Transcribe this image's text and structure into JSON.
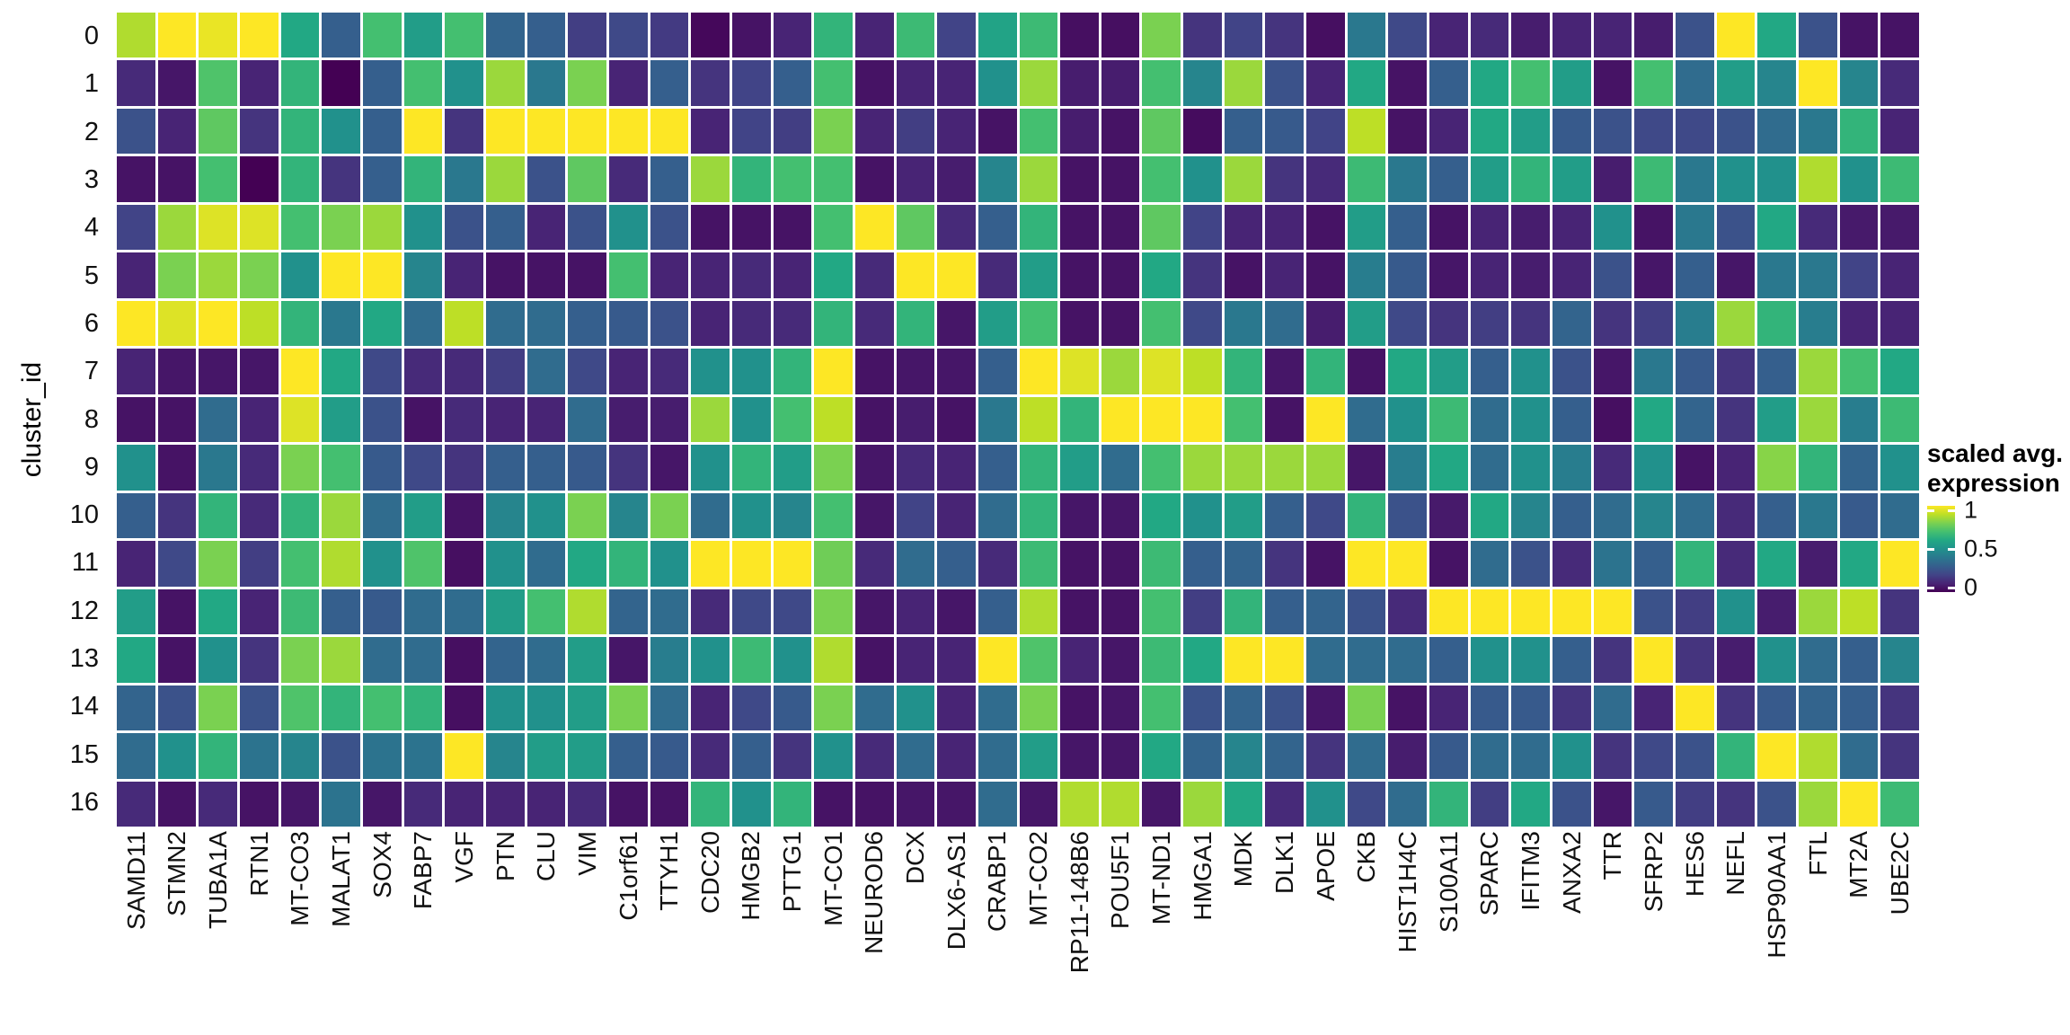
{
  "figure": {
    "y_axis_title": "cluster_id",
    "legend": {
      "title_line1": "scaled avg.",
      "title_line2": "expression",
      "ticks": [
        "1",
        "0.5",
        "0"
      ]
    }
  },
  "chart_data": {
    "type": "heatmap",
    "title": "",
    "xlabel": "",
    "ylabel": "cluster_id",
    "legend_title": "scaled avg. expression",
    "colormap": "viridis",
    "value_range": [
      0,
      1
    ],
    "legend_tick_values": [
      1,
      0.5,
      0
    ],
    "grid": "white gaps between tiles",
    "legend_position": "right",
    "colormap_stops": [
      [
        0.0,
        "#440154"
      ],
      [
        0.1,
        "#482475"
      ],
      [
        0.2,
        "#414487"
      ],
      [
        0.3,
        "#355f8d"
      ],
      [
        0.4,
        "#2a788e"
      ],
      [
        0.5,
        "#21918c"
      ],
      [
        0.6,
        "#22a884"
      ],
      [
        0.7,
        "#44bf70"
      ],
      [
        0.8,
        "#7ad151"
      ],
      [
        0.9,
        "#bddf26"
      ],
      [
        1.0,
        "#fde725"
      ]
    ],
    "rows": [
      "0",
      "1",
      "2",
      "3",
      "4",
      "5",
      "6",
      "7",
      "8",
      "9",
      "10",
      "11",
      "12",
      "13",
      "14",
      "15",
      "16"
    ],
    "columns": [
      "SAMD11",
      "STMN2",
      "TUBA1A",
      "RTN1",
      "MT-CO3",
      "MALAT1",
      "SOX4",
      "FABP7",
      "VGF",
      "PTN",
      "CLU",
      "VIM",
      "C1orf61",
      "TTYH1",
      "CDC20",
      "HMGB2",
      "PTTG1",
      "MT-CO1",
      "NEUROD6",
      "DCX",
      "DLX6-AS1",
      "CRABP1",
      "MT-CO2",
      "RP11-148B6",
      "POU5F1",
      "MT-ND1",
      "HMGA1",
      "MDK",
      "DLK1",
      "APOE",
      "CKB",
      "HIST1H4C",
      "S100A11",
      "SPARC",
      "IFITM3",
      "ANXA2",
      "TTR",
      "SFRP2",
      "HES6",
      "NEFL",
      "HSP90AA1",
      "FTL",
      "MT2A",
      "UBE2C"
    ],
    "values": [
      [
        0.88,
        1,
        0.97,
        1,
        0.6,
        0.3,
        0.7,
        0.55,
        0.7,
        0.32,
        0.3,
        0.18,
        0.22,
        0.17,
        0.02,
        0.05,
        0.1,
        0.65,
        0.1,
        0.68,
        0.2,
        0.58,
        0.68,
        0.04,
        0.04,
        0.8,
        0.15,
        0.2,
        0.15,
        0.04,
        0.4,
        0.22,
        0.1,
        0.12,
        0.08,
        0.1,
        0.1,
        0.08,
        0.25,
        1,
        0.6,
        0.25,
        0.05,
        0.05
      ],
      [
        0.12,
        0.06,
        0.72,
        0.1,
        0.65,
        0,
        0.3,
        0.7,
        0.5,
        0.85,
        0.4,
        0.8,
        0.1,
        0.3,
        0.15,
        0.2,
        0.3,
        0.7,
        0.05,
        0.1,
        0.1,
        0.5,
        0.85,
        0.08,
        0.08,
        0.7,
        0.45,
        0.85,
        0.25,
        0.1,
        0.6,
        0.05,
        0.3,
        0.6,
        0.7,
        0.55,
        0.05,
        0.7,
        0.35,
        0.55,
        0.45,
        1,
        0.45,
        0.12
      ],
      [
        0.25,
        0.1,
        0.75,
        0.15,
        0.65,
        0.5,
        0.3,
        1,
        0.15,
        1,
        1,
        1,
        1,
        1,
        0.1,
        0.2,
        0.18,
        0.8,
        0.1,
        0.18,
        0.1,
        0.05,
        0.7,
        0.08,
        0.05,
        0.75,
        0.03,
        0.3,
        0.28,
        0.2,
        0.9,
        0.05,
        0.1,
        0.6,
        0.55,
        0.28,
        0.25,
        0.22,
        0.22,
        0.25,
        0.35,
        0.4,
        0.65,
        0.1
      ],
      [
        0.05,
        0.05,
        0.7,
        0,
        0.65,
        0.15,
        0.3,
        0.65,
        0.4,
        0.85,
        0.25,
        0.75,
        0.12,
        0.3,
        0.85,
        0.65,
        0.7,
        0.7,
        0.05,
        0.1,
        0.08,
        0.45,
        0.85,
        0.05,
        0.05,
        0.7,
        0.5,
        0.85,
        0.15,
        0.12,
        0.68,
        0.4,
        0.3,
        0.55,
        0.65,
        0.55,
        0.08,
        0.68,
        0.4,
        0.5,
        0.5,
        0.88,
        0.5,
        0.68
      ],
      [
        0.2,
        0.85,
        0.95,
        0.95,
        0.7,
        0.8,
        0.85,
        0.5,
        0.25,
        0.3,
        0.1,
        0.25,
        0.5,
        0.25,
        0.05,
        0.05,
        0.05,
        0.7,
        1,
        0.75,
        0.12,
        0.3,
        0.65,
        0.05,
        0.05,
        0.75,
        0.2,
        0.1,
        0.1,
        0.05,
        0.55,
        0.3,
        0.05,
        0.1,
        0.08,
        0.1,
        0.5,
        0.05,
        0.4,
        0.25,
        0.6,
        0.12,
        0.07,
        0.07
      ],
      [
        0.1,
        0.8,
        0.85,
        0.8,
        0.5,
        1,
        1,
        0.45,
        0.1,
        0.05,
        0.05,
        0.05,
        0.7,
        0.1,
        0.1,
        0.12,
        0.1,
        0.6,
        0.12,
        1,
        1,
        0.12,
        0.55,
        0.05,
        0.05,
        0.6,
        0.15,
        0.05,
        0.1,
        0.05,
        0.42,
        0.28,
        0.06,
        0.1,
        0.08,
        0.1,
        0.25,
        0.06,
        0.3,
        0.06,
        0.4,
        0.4,
        0.2,
        0.1
      ],
      [
        1,
        0.95,
        1,
        0.9,
        0.65,
        0.4,
        0.6,
        0.35,
        0.9,
        0.35,
        0.35,
        0.3,
        0.28,
        0.25,
        0.1,
        0.12,
        0.12,
        0.65,
        0.12,
        0.65,
        0.06,
        0.55,
        0.7,
        0.05,
        0.05,
        0.7,
        0.22,
        0.4,
        0.35,
        0.08,
        0.55,
        0.22,
        0.15,
        0.18,
        0.15,
        0.32,
        0.15,
        0.18,
        0.42,
        0.85,
        0.65,
        0.42,
        0.1,
        0.1
      ],
      [
        0.1,
        0.06,
        0.06,
        0.06,
        1,
        0.6,
        0.22,
        0.12,
        0.12,
        0.18,
        0.35,
        0.22,
        0.1,
        0.12,
        0.5,
        0.5,
        0.65,
        1,
        0.05,
        0.06,
        0.06,
        0.3,
        1,
        0.95,
        0.85,
        0.95,
        0.9,
        0.65,
        0.06,
        0.65,
        0.05,
        0.6,
        0.55,
        0.3,
        0.5,
        0.25,
        0.06,
        0.4,
        0.28,
        0.15,
        0.3,
        0.85,
        0.7,
        0.6
      ],
      [
        0.05,
        0.05,
        0.35,
        0.1,
        0.95,
        0.55,
        0.25,
        0.05,
        0.12,
        0.1,
        0.1,
        0.35,
        0.08,
        0.08,
        0.85,
        0.5,
        0.7,
        0.9,
        0.05,
        0.08,
        0.05,
        0.4,
        0.9,
        0.65,
        1,
        1,
        1,
        0.7,
        0.05,
        1,
        0.35,
        0.5,
        0.68,
        0.35,
        0.5,
        0.3,
        0.04,
        0.6,
        0.32,
        0.15,
        0.55,
        0.85,
        0.42,
        0.68
      ],
      [
        0.5,
        0.05,
        0.4,
        0.12,
        0.8,
        0.7,
        0.28,
        0.22,
        0.15,
        0.3,
        0.3,
        0.28,
        0.15,
        0.06,
        0.5,
        0.65,
        0.55,
        0.8,
        0.06,
        0.12,
        0.1,
        0.3,
        0.65,
        0.55,
        0.35,
        0.7,
        0.85,
        0.85,
        0.85,
        0.85,
        0.06,
        0.42,
        0.6,
        0.35,
        0.5,
        0.42,
        0.12,
        0.5,
        0.05,
        0.1,
        0.82,
        0.65,
        0.32,
        0.5
      ],
      [
        0.3,
        0.15,
        0.65,
        0.12,
        0.65,
        0.85,
        0.35,
        0.55,
        0.05,
        0.45,
        0.5,
        0.8,
        0.45,
        0.8,
        0.35,
        0.5,
        0.45,
        0.7,
        0.06,
        0.2,
        0.1,
        0.35,
        0.65,
        0.06,
        0.06,
        0.6,
        0.5,
        0.55,
        0.3,
        0.22,
        0.65,
        0.25,
        0.07,
        0.6,
        0.45,
        0.3,
        0.35,
        0.45,
        0.35,
        0.12,
        0.3,
        0.4,
        0.28,
        0.35
      ],
      [
        0.1,
        0.22,
        0.8,
        0.18,
        0.7,
        0.88,
        0.5,
        0.72,
        0.04,
        0.5,
        0.35,
        0.6,
        0.65,
        0.5,
        1,
        1,
        1,
        0.78,
        0.12,
        0.35,
        0.3,
        0.12,
        0.68,
        0.05,
        0.05,
        0.68,
        0.3,
        0.32,
        0.15,
        0.05,
        1,
        1,
        0.05,
        0.35,
        0.25,
        0.12,
        0.38,
        0.3,
        0.65,
        0.12,
        0.6,
        0.08,
        0.6,
        1
      ],
      [
        0.55,
        0.05,
        0.6,
        0.1,
        0.68,
        0.3,
        0.28,
        0.35,
        0.35,
        0.55,
        0.7,
        0.88,
        0.32,
        0.35,
        0.12,
        0.22,
        0.22,
        0.8,
        0.06,
        0.1,
        0.06,
        0.3,
        0.88,
        0.05,
        0.05,
        0.7,
        0.18,
        0.65,
        0.3,
        0.32,
        0.25,
        0.12,
        1,
        1,
        1,
        1,
        1,
        0.25,
        0.18,
        0.5,
        0.08,
        0.85,
        0.9,
        0.15
      ],
      [
        0.6,
        0.05,
        0.5,
        0.15,
        0.8,
        0.85,
        0.35,
        0.35,
        0.04,
        0.32,
        0.35,
        0.55,
        0.06,
        0.42,
        0.5,
        0.68,
        0.5,
        0.88,
        0.05,
        0.1,
        0.1,
        1,
        0.72,
        0.1,
        0.06,
        0.68,
        0.6,
        1,
        1,
        0.35,
        0.35,
        0.35,
        0.3,
        0.5,
        0.5,
        0.3,
        0.15,
        1,
        0.15,
        0.08,
        0.5,
        0.35,
        0.3,
        0.45
      ],
      [
        0.32,
        0.25,
        0.8,
        0.25,
        0.72,
        0.65,
        0.7,
        0.65,
        0.04,
        0.5,
        0.5,
        0.55,
        0.8,
        0.35,
        0.1,
        0.22,
        0.28,
        0.8,
        0.35,
        0.5,
        0.1,
        0.35,
        0.8,
        0.05,
        0.06,
        0.7,
        0.25,
        0.32,
        0.25,
        0.06,
        0.8,
        0.05,
        0.1,
        0.28,
        0.28,
        0.15,
        0.35,
        0.1,
        1,
        0.15,
        0.28,
        0.32,
        0.3,
        0.15
      ],
      [
        0.35,
        0.5,
        0.65,
        0.38,
        0.45,
        0.25,
        0.38,
        0.38,
        1,
        0.45,
        0.55,
        0.55,
        0.3,
        0.28,
        0.12,
        0.3,
        0.15,
        0.5,
        0.12,
        0.35,
        0.1,
        0.35,
        0.55,
        0.06,
        0.06,
        0.6,
        0.32,
        0.45,
        0.32,
        0.15,
        0.35,
        0.08,
        0.28,
        0.35,
        0.35,
        0.5,
        0.15,
        0.22,
        0.25,
        0.65,
        1,
        0.88,
        0.35,
        0.15
      ],
      [
        0.12,
        0.05,
        0.12,
        0.05,
        0.06,
        0.38,
        0.06,
        0.12,
        0.1,
        0.1,
        0.1,
        0.12,
        0.05,
        0.05,
        0.65,
        0.5,
        0.65,
        0.05,
        0.05,
        0.06,
        0.06,
        0.35,
        0.06,
        0.88,
        0.88,
        0.06,
        0.85,
        0.6,
        0.12,
        0.5,
        0.22,
        0.35,
        0.65,
        0.18,
        0.6,
        0.25,
        0.06,
        0.28,
        0.18,
        0.15,
        0.25,
        0.85,
        1,
        0.68
      ]
    ]
  }
}
